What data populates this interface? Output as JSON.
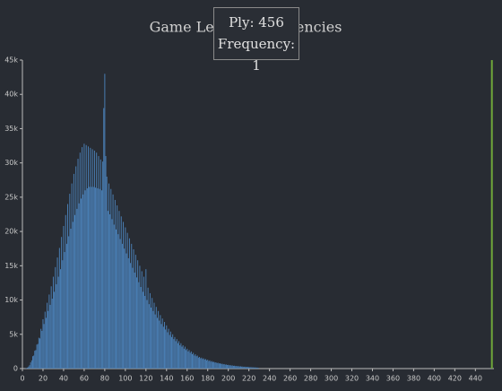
{
  "chart_data": {
    "type": "bar",
    "title": "Game Length Frequencies",
    "x": [
      0,
      1,
      2,
      3,
      4,
      5,
      6,
      7,
      8,
      9,
      10,
      11,
      12,
      13,
      14,
      15,
      16,
      17,
      18,
      19,
      20,
      21,
      22,
      23,
      24,
      25,
      26,
      27,
      28,
      29,
      30,
      31,
      32,
      33,
      34,
      35,
      36,
      37,
      38,
      39,
      40,
      41,
      42,
      43,
      44,
      45,
      46,
      47,
      48,
      49,
      50,
      51,
      52,
      53,
      54,
      55,
      56,
      57,
      58,
      59,
      60,
      61,
      62,
      63,
      64,
      65,
      66,
      67,
      68,
      69,
      70,
      71,
      72,
      73,
      74,
      75,
      76,
      77,
      78,
      79,
      80,
      81,
      82,
      83,
      84,
      85,
      86,
      87,
      88,
      89,
      90,
      91,
      92,
      93,
      94,
      95,
      96,
      97,
      98,
      99,
      100,
      101,
      102,
      103,
      104,
      105,
      106,
      107,
      108,
      109,
      110,
      111,
      112,
      113,
      114,
      115,
      116,
      117,
      118,
      119,
      120,
      121,
      122,
      123,
      124,
      125,
      126,
      127,
      128,
      129,
      130,
      131,
      132,
      133,
      134,
      135,
      136,
      137,
      138,
      139,
      140,
      141,
      142,
      143,
      144,
      145,
      146,
      147,
      148,
      149,
      150,
      151,
      152,
      153,
      154,
      155,
      156,
      157,
      158,
      159,
      160,
      161,
      162,
      163,
      164,
      165,
      166,
      167,
      168,
      169,
      170,
      171,
      172,
      173,
      174,
      175,
      176,
      177,
      178,
      179,
      180,
      181,
      182,
      183,
      184,
      185,
      186,
      187,
      188,
      189,
      190,
      191,
      192,
      193,
      194,
      195,
      196,
      197,
      198,
      199,
      200,
      201,
      202,
      203,
      204,
      205,
      206,
      207,
      208,
      209,
      210,
      211,
      212,
      213,
      214,
      215,
      216,
      217,
      218,
      219,
      220,
      221,
      222,
      223,
      224,
      225,
      226,
      227,
      228,
      229,
      456
    ],
    "values": [
      0,
      0,
      10,
      30,
      80,
      150,
      300,
      500,
      900,
      1200,
      1800,
      1900,
      2600,
      2700,
      3500,
      3600,
      4500,
      4400,
      5800,
      5500,
      7200,
      6500,
      8300,
      7400,
      9600,
      8400,
      10800,
      9300,
      12000,
      10200,
      13400,
      11200,
      14800,
      12300,
      16200,
      13400,
      17600,
      14500,
      19200,
      15800,
      20800,
      17000,
      22400,
      18200,
      24000,
      19300,
      25500,
      20400,
      27000,
      21400,
      28400,
      22400,
      29500,
      23300,
      30600,
      24100,
      31500,
      24800,
      32300,
      25400,
      32800,
      26000,
      32600,
      26300,
      32400,
      26500,
      32200,
      26500,
      32000,
      26500,
      31800,
      26400,
      31500,
      26300,
      31000,
      26200,
      30500,
      26000,
      30200,
      38000,
      43000,
      31000,
      28000,
      23000,
      27000,
      22500,
      26200,
      21800,
      25400,
      21000,
      24600,
      20300,
      23800,
      19600,
      23000,
      18900,
      22200,
      18200,
      21400,
      17500,
      20600,
      16800,
      19800,
      16100,
      19000,
      15400,
      18200,
      14700,
      17400,
      14000,
      16600,
      13300,
      15800,
      12600,
      15000,
      11900,
      14200,
      11200,
      13400,
      10600,
      14500,
      10000,
      11800,
      9400,
      11000,
      8900,
      10300,
      8400,
      9600,
      7900,
      9000,
      7400,
      8400,
      7000,
      7800,
      6500,
      7300,
      6100,
      6800,
      5700,
      6300,
      5300,
      5800,
      4900,
      5400,
      4600,
      5000,
      4300,
      4600,
      4000,
      4300,
      3700,
      4000,
      3400,
      3700,
      3200,
      3400,
      2900,
      3200,
      2700,
      2900,
      2500,
      2700,
      2300,
      2500,
      2100,
      2300,
      1900,
      2100,
      1800,
      1900,
      1600,
      1700,
      1500,
      1600,
      1400,
      1500,
      1300,
      1400,
      1200,
      1300,
      1100,
      1200,
      1000,
      1100,
      950,
      1000,
      880,
      920,
      800,
      850,
      740,
      780,
      680,
      720,
      620,
      660,
      570,
      600,
      520,
      550,
      480,
      500,
      440,
      460,
      400,
      420,
      370,
      390,
      340,
      360,
      310,
      330,
      290,
      300,
      260,
      280,
      240,
      250,
      220,
      230,
      200,
      210,
      180,
      190,
      160,
      170,
      150,
      150,
      130,
      1
    ],
    "color": "#4a7fb5",
    "highlight_color": "#6fa83a",
    "hovered_index": 230,
    "xlim": [
      0,
      458
    ],
    "xticks": [
      0,
      20,
      40,
      60,
      80,
      100,
      120,
      140,
      160,
      180,
      200,
      220,
      240,
      260,
      280,
      300,
      320,
      340,
      360,
      380,
      400,
      420,
      440
    ],
    "ylim": [
      0,
      45000
    ],
    "yticks": [
      0,
      {
        "value": 5000,
        "label": "5k"
      },
      {
        "value": 10000,
        "label": "10k"
      },
      {
        "value": 15000,
        "label": "15k"
      },
      {
        "value": 20000,
        "label": "20k"
      },
      {
        "value": 25000,
        "label": "25k"
      },
      {
        "value": 30000,
        "label": "30k"
      },
      {
        "value": 35000,
        "label": "35k"
      },
      {
        "value": 40000,
        "label": "40k"
      },
      {
        "value": 45000,
        "label": "45k"
      }
    ],
    "tooltip": {
      "line1": "Ply: 456",
      "line2": "Frequency: 1"
    }
  }
}
